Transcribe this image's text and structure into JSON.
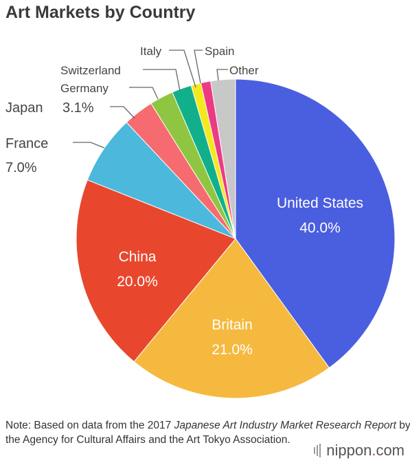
{
  "title": "Art Markets by Country",
  "chart_data": {
    "type": "pie",
    "title": "Art Markets by Country",
    "slices": [
      {
        "name": "United States",
        "label": "40.0%",
        "value": 40.0,
        "color": "#4a5ee0"
      },
      {
        "name": "Britain",
        "label": "21.0%",
        "value": 21.0,
        "color": "#f5b93f"
      },
      {
        "name": "China",
        "label": "20.0%",
        "value": 20.0,
        "color": "#e8472e"
      },
      {
        "name": "France",
        "label": "7.0%",
        "value": 7.0,
        "color": "#4bb8dc"
      },
      {
        "name": "Japan",
        "label": "3.1%",
        "value": 3.1,
        "color": "#f56b70"
      },
      {
        "name": "Germany",
        "label": "",
        "value": 2.4,
        "color": "#8fc641"
      },
      {
        "name": "Switzerland",
        "label": "",
        "value": 2.0,
        "color": "#12b08a"
      },
      {
        "name": "Italy",
        "label": "",
        "value": 1.0,
        "color": "#f5e81e"
      },
      {
        "name": "Spain",
        "label": "",
        "value": 1.0,
        "color": "#ec3b83"
      },
      {
        "name": "Other",
        "label": "",
        "value": 2.5,
        "color": "#c8c8c8"
      }
    ]
  },
  "note": {
    "prefix": "Note: Based on data from the 2017 ",
    "italic": "Japanese Art Industry Market Research Report",
    "suffix": " by the Agency for Cultural Affairs and the Art Tokyo Association."
  },
  "logo": {
    "left": "nippon",
    "dot": ".",
    "right": "com"
  }
}
